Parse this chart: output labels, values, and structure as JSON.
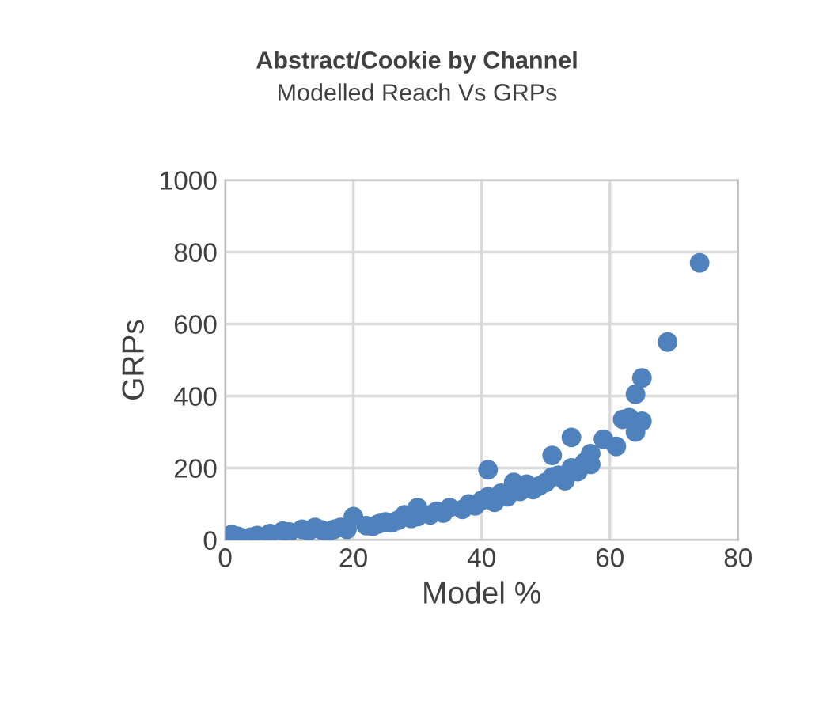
{
  "chart_data": {
    "type": "scatter",
    "title": "Abstract/Cookie by Channel",
    "subtitle": "Modelled Reach Vs GRPs",
    "xlabel": "Model %",
    "ylabel": "GRPs",
    "xlim": [
      0,
      80
    ],
    "xticks": [
      0,
      20,
      40,
      60,
      80
    ],
    "ylim": [
      0,
      1000
    ],
    "yticks": [
      0,
      200,
      400,
      600,
      800,
      1000
    ],
    "grid": true,
    "marker": "circle",
    "series": [
      {
        "color": "#4f81bd",
        "x": [
          1,
          2,
          4,
          5,
          7,
          9,
          10,
          12,
          13,
          14,
          15,
          16,
          17,
          18,
          19,
          20,
          22,
          23,
          24,
          25,
          26,
          27,
          28,
          29,
          30,
          30,
          32,
          33,
          34,
          35,
          37,
          38,
          39,
          40,
          41,
          41,
          42,
          43,
          44,
          45,
          46,
          47,
          48,
          49,
          50,
          51,
          51,
          52,
          53,
          54,
          54,
          55,
          56,
          57,
          57,
          59,
          61,
          62,
          63,
          64,
          64,
          65,
          65,
          69,
          74
        ],
        "values": [
          15,
          10,
          8,
          12,
          18,
          25,
          22,
          30,
          25,
          35,
          28,
          22,
          30,
          35,
          30,
          65,
          40,
          38,
          45,
          50,
          48,
          55,
          70,
          60,
          90,
          65,
          70,
          80,
          75,
          90,
          85,
          100,
          95,
          110,
          195,
          120,
          105,
          130,
          120,
          160,
          135,
          155,
          140,
          150,
          160,
          235,
          175,
          180,
          165,
          200,
          285,
          190,
          215,
          240,
          210,
          280,
          260,
          335,
          340,
          405,
          300,
          330,
          450,
          550,
          770
        ]
      }
    ]
  }
}
